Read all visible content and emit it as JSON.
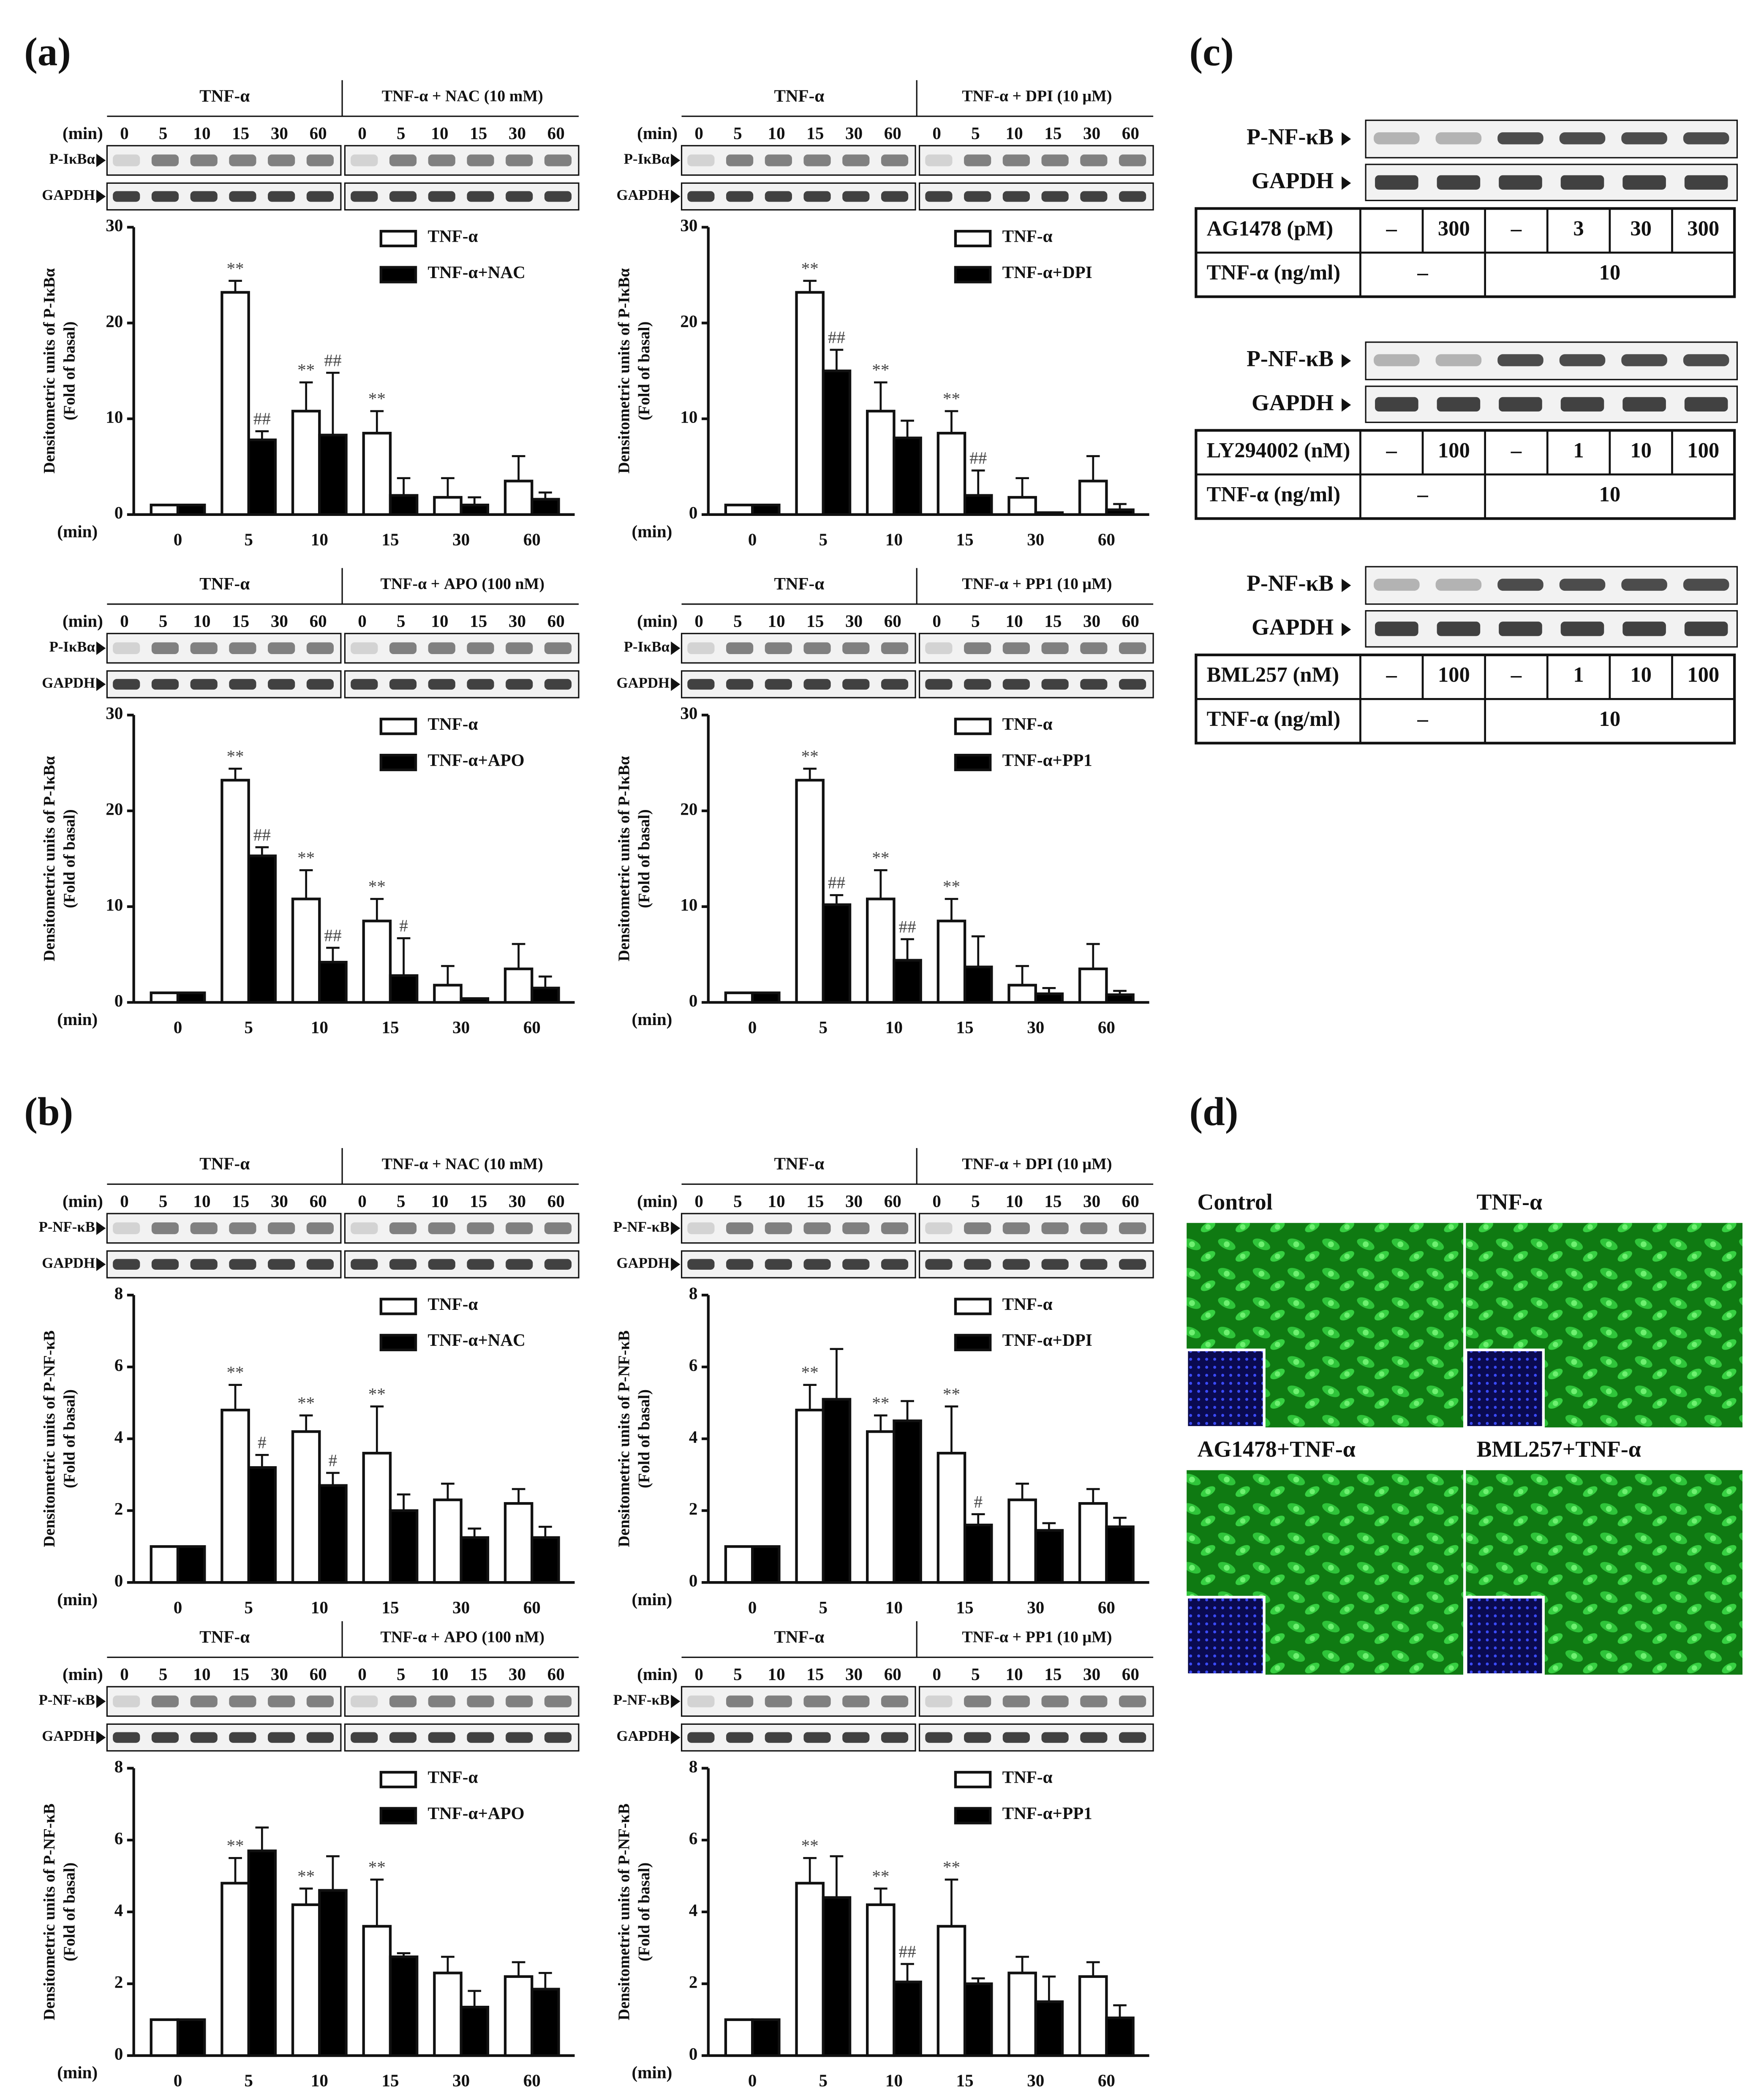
{
  "panel_labels": [
    "(a)",
    "(b)",
    "(c)",
    "(d)"
  ],
  "blots": [
    {
      "headers": [
        "TNF-α",
        "TNF-α + NAC (10 mM)"
      ],
      "time_label": "(min)",
      "times": [
        "0",
        "5",
        "10",
        "15",
        "30",
        "60"
      ],
      "rows": [
        "P-IκBα",
        "GAPDH"
      ]
    },
    {
      "headers": [
        "TNF-α",
        "TNF-α + DPI (10 μM)"
      ],
      "time_label": "(min)",
      "times": [
        "0",
        "5",
        "10",
        "15",
        "30",
        "60"
      ],
      "rows": [
        "P-IκBα",
        "GAPDH"
      ]
    },
    {
      "headers": [
        "TNF-α",
        "TNF-α + APO (100 nM)"
      ],
      "time_label": "(min)",
      "times": [
        "0",
        "5",
        "10",
        "15",
        "30",
        "60"
      ],
      "rows": [
        "P-IκBα",
        "GAPDH"
      ]
    },
    {
      "headers": [
        "TNF-α",
        "TNF-α + PP1 (10 μM)"
      ],
      "time_label": "(min)",
      "times": [
        "0",
        "5",
        "10",
        "15",
        "30",
        "60"
      ],
      "rows": [
        "P-IκBα",
        "GAPDH"
      ]
    },
    {
      "headers": [
        "TNF-α",
        "TNF-α + NAC (10 mM)"
      ],
      "time_label": "(min)",
      "times": [
        "0",
        "5",
        "10",
        "15",
        "30",
        "60"
      ],
      "rows": [
        "P-NF-κB",
        "GAPDH"
      ]
    },
    {
      "headers": [
        "TNF-α",
        "TNF-α + DPI (10 μM)"
      ],
      "time_label": "(min)",
      "times": [
        "0",
        "5",
        "10",
        "15",
        "30",
        "60"
      ],
      "rows": [
        "P-NF-κB",
        "GAPDH"
      ]
    },
    {
      "headers": [
        "TNF-α",
        "TNF-α + APO (100 nM)"
      ],
      "time_label": "(min)",
      "times": [
        "0",
        "5",
        "10",
        "15",
        "30",
        "60"
      ],
      "rows": [
        "P-NF-κB",
        "GAPDH"
      ]
    },
    {
      "headers": [
        "TNF-α",
        "TNF-α + PP1 (10 μM)"
      ],
      "time_label": "(min)",
      "times": [
        "0",
        "5",
        "10",
        "15",
        "30",
        "60"
      ],
      "rows": [
        "P-NF-κB",
        "GAPDH"
      ]
    }
  ],
  "chart_data": [
    {
      "type": "bar",
      "ylabel": [
        "Densitometric units of P-IκBα",
        "(Fold of basal)"
      ],
      "xlabel": "(min)",
      "categories": [
        "0",
        "5",
        "10",
        "15",
        "30",
        "60"
      ],
      "ylim": [
        0,
        30
      ],
      "yticks": [
        0,
        10,
        20,
        30
      ],
      "series": [
        {
          "name": "TNF-α",
          "color": "#ffffff",
          "values": [
            1,
            23.2,
            10.8,
            8.5,
            1.8,
            3.5
          ],
          "errors": [
            0,
            1.2,
            3,
            2.3,
            2,
            2.6
          ],
          "significance": [
            null,
            "**",
            "**",
            "**",
            null,
            null
          ]
        },
        {
          "name": "TNF-α+NAC",
          "color": "#000000",
          "values": [
            1,
            7.8,
            8.3,
            2,
            1,
            1.6
          ],
          "errors": [
            0,
            0.9,
            6.5,
            1.8,
            0.8,
            0.7
          ],
          "significance": [
            null,
            "##",
            "##",
            null,
            null,
            null
          ]
        }
      ]
    },
    {
      "type": "bar",
      "ylabel": [
        "Densitometric units of P-IκBα",
        "(Fold of basal)"
      ],
      "xlabel": "(min)",
      "categories": [
        "0",
        "5",
        "10",
        "15",
        "30",
        "60"
      ],
      "ylim": [
        0,
        30
      ],
      "yticks": [
        0,
        10,
        20,
        30
      ],
      "series": [
        {
          "name": "TNF-α",
          "color": "#ffffff",
          "values": [
            1,
            23.2,
            10.8,
            8.5,
            1.8,
            3.5
          ],
          "errors": [
            0,
            1.2,
            3,
            2.3,
            2,
            2.6
          ],
          "significance": [
            null,
            "**",
            "**",
            "**",
            null,
            null
          ]
        },
        {
          "name": "TNF-α+DPI",
          "color": "#000000",
          "values": [
            1,
            15,
            8,
            2,
            0.2,
            0.5
          ],
          "errors": [
            0,
            2.2,
            1.8,
            2.6,
            0,
            0.6
          ],
          "significance": [
            null,
            "##",
            null,
            "##",
            null,
            null
          ]
        }
      ]
    },
    {
      "type": "bar",
      "ylabel": [
        "Densitometric units of P-IκBα",
        "(Fold of basal)"
      ],
      "xlabel": "(min)",
      "categories": [
        "0",
        "5",
        "10",
        "15",
        "30",
        "60"
      ],
      "ylim": [
        0,
        30
      ],
      "yticks": [
        0,
        10,
        20,
        30
      ],
      "series": [
        {
          "name": "TNF-α",
          "color": "#ffffff",
          "values": [
            1,
            23.2,
            10.8,
            8.5,
            1.8,
            3.5
          ],
          "errors": [
            0,
            1.2,
            3,
            2.3,
            2,
            2.6
          ],
          "significance": [
            null,
            "**",
            "**",
            "**",
            null,
            null
          ]
        },
        {
          "name": "TNF-α+APO",
          "color": "#000000",
          "values": [
            1,
            15.3,
            4.2,
            2.8,
            0.4,
            1.5
          ],
          "errors": [
            0,
            0.9,
            1.5,
            3.9,
            0,
            1.2
          ],
          "significance": [
            null,
            "##",
            "##",
            "#",
            null,
            null
          ]
        }
      ]
    },
    {
      "type": "bar",
      "ylabel": [
        "Densitometric units of P-IκBα",
        "(Fold of basal)"
      ],
      "xlabel": "(min)",
      "categories": [
        "0",
        "5",
        "10",
        "15",
        "30",
        "60"
      ],
      "ylim": [
        0,
        30
      ],
      "yticks": [
        0,
        10,
        20,
        30
      ],
      "series": [
        {
          "name": "TNF-α",
          "color": "#ffffff",
          "values": [
            1,
            23.2,
            10.8,
            8.5,
            1.8,
            3.5
          ],
          "errors": [
            0,
            1.2,
            3,
            2.3,
            2,
            2.6
          ],
          "significance": [
            null,
            "**",
            "**",
            "**",
            null,
            null
          ]
        },
        {
          "name": "TNF-α+PP1",
          "color": "#000000",
          "values": [
            1,
            10.2,
            4.4,
            3.7,
            0.9,
            0.8
          ],
          "errors": [
            0,
            1,
            2.2,
            3.2,
            0.6,
            0.4
          ],
          "significance": [
            null,
            "##",
            "##",
            null,
            null,
            null
          ]
        }
      ]
    },
    {
      "type": "bar",
      "ylabel": [
        "Densitometric units of P-NF-κB",
        "(Fold of basal)"
      ],
      "xlabel": "(min)",
      "categories": [
        "0",
        "5",
        "10",
        "15",
        "30",
        "60"
      ],
      "ylim": [
        0,
        8
      ],
      "yticks": [
        0,
        2,
        4,
        6,
        8
      ],
      "series": [
        {
          "name": "TNF-α",
          "color": "#ffffff",
          "values": [
            1,
            4.8,
            4.2,
            3.6,
            2.3,
            2.2
          ],
          "errors": [
            0,
            0.7,
            0.45,
            1.3,
            0.45,
            0.4
          ],
          "significance": [
            null,
            "**",
            "**",
            "**",
            null,
            null
          ]
        },
        {
          "name": "TNF-α+NAC",
          "color": "#000000",
          "values": [
            1,
            3.2,
            2.7,
            2,
            1.25,
            1.25
          ],
          "errors": [
            0,
            0.35,
            0.35,
            0.45,
            0.25,
            0.3
          ],
          "significance": [
            null,
            "#",
            "#",
            null,
            null,
            null
          ]
        }
      ]
    },
    {
      "type": "bar",
      "ylabel": [
        "Densitometric units of P-NF-κB",
        "(Fold of basal)"
      ],
      "xlabel": "(min)",
      "categories": [
        "0",
        "5",
        "10",
        "15",
        "30",
        "60"
      ],
      "ylim": [
        0,
        8
      ],
      "yticks": [
        0,
        2,
        4,
        6,
        8
      ],
      "series": [
        {
          "name": "TNF-α",
          "color": "#ffffff",
          "values": [
            1,
            4.8,
            4.2,
            3.6,
            2.3,
            2.2
          ],
          "errors": [
            0,
            0.7,
            0.45,
            1.3,
            0.45,
            0.4
          ],
          "significance": [
            null,
            "**",
            "**",
            "**",
            null,
            null
          ]
        },
        {
          "name": "TNF-α+DPI",
          "color": "#000000",
          "values": [
            1,
            5.1,
            4.5,
            1.6,
            1.45,
            1.55
          ],
          "errors": [
            0,
            1.4,
            0.55,
            0.3,
            0.2,
            0.25
          ],
          "significance": [
            null,
            null,
            null,
            "#",
            null,
            null
          ]
        }
      ]
    },
    {
      "type": "bar",
      "ylabel": [
        "Densitometric units of P-NF-κB",
        "(Fold of basal)"
      ],
      "xlabel": "(min)",
      "categories": [
        "0",
        "5",
        "10",
        "15",
        "30",
        "60"
      ],
      "ylim": [
        0,
        8
      ],
      "yticks": [
        0,
        2,
        4,
        6,
        8
      ],
      "series": [
        {
          "name": "TNF-α",
          "color": "#ffffff",
          "values": [
            1,
            4.8,
            4.2,
            3.6,
            2.3,
            2.2
          ],
          "errors": [
            0,
            0.7,
            0.45,
            1.3,
            0.45,
            0.4
          ],
          "significance": [
            null,
            "**",
            "**",
            "**",
            null,
            null
          ]
        },
        {
          "name": "TNF-α+APO",
          "color": "#000000",
          "values": [
            1,
            5.7,
            4.6,
            2.75,
            1.35,
            1.85
          ],
          "errors": [
            0,
            0.65,
            0.95,
            0.1,
            0.45,
            0.45
          ]
        }
      ]
    },
    {
      "type": "bar",
      "ylabel": [
        "Densitometric units of P-NF-κB",
        "(Fold of basal)"
      ],
      "xlabel": "(min)",
      "categories": [
        "0",
        "5",
        "10",
        "15",
        "30",
        "60"
      ],
      "ylim": [
        0,
        8
      ],
      "yticks": [
        0,
        2,
        4,
        6,
        8
      ],
      "series": [
        {
          "name": "TNF-α",
          "color": "#ffffff",
          "values": [
            1,
            4.8,
            4.2,
            3.6,
            2.3,
            2.2
          ],
          "errors": [
            0,
            0.7,
            0.45,
            1.3,
            0.45,
            0.4
          ],
          "significance": [
            null,
            "**",
            "**",
            "**",
            null,
            null
          ]
        },
        {
          "name": "TNF-α+PP1",
          "color": "#000000",
          "values": [
            1,
            4.4,
            2.05,
            2,
            1.5,
            1.05
          ],
          "errors": [
            0,
            1.15,
            0.5,
            0.15,
            0.7,
            0.35
          ],
          "significance": [
            null,
            null,
            "##",
            null,
            null,
            null
          ]
        }
      ]
    }
  ],
  "panel_c": [
    {
      "rows": [
        "P-NF-κB",
        "GAPDH"
      ],
      "inhibitor": "AG1478 (pM)",
      "doses": [
        "–",
        "300",
        "–",
        "3",
        "30",
        "300"
      ],
      "tnf_label": "TNF-α (ng/ml)",
      "tnf": [
        "–",
        "10"
      ]
    },
    {
      "rows": [
        "P-NF-κB",
        "GAPDH"
      ],
      "inhibitor": "LY294002 (nM)",
      "doses": [
        "–",
        "100",
        "–",
        "1",
        "10",
        "100"
      ],
      "tnf_label": "TNF-α (ng/ml)",
      "tnf": [
        "–",
        "10"
      ]
    },
    {
      "rows": [
        "P-NF-κB",
        "GAPDH"
      ],
      "inhibitor": "BML257 (nM)",
      "doses": [
        "–",
        "100",
        "–",
        "1",
        "10",
        "100"
      ],
      "tnf_label": "TNF-α (ng/ml)",
      "tnf": [
        "–",
        "10"
      ]
    }
  ],
  "panel_d": {
    "labels": [
      "Control",
      "TNF-α",
      "AG1478+TNF-α",
      "BML257+TNF-α"
    ]
  }
}
